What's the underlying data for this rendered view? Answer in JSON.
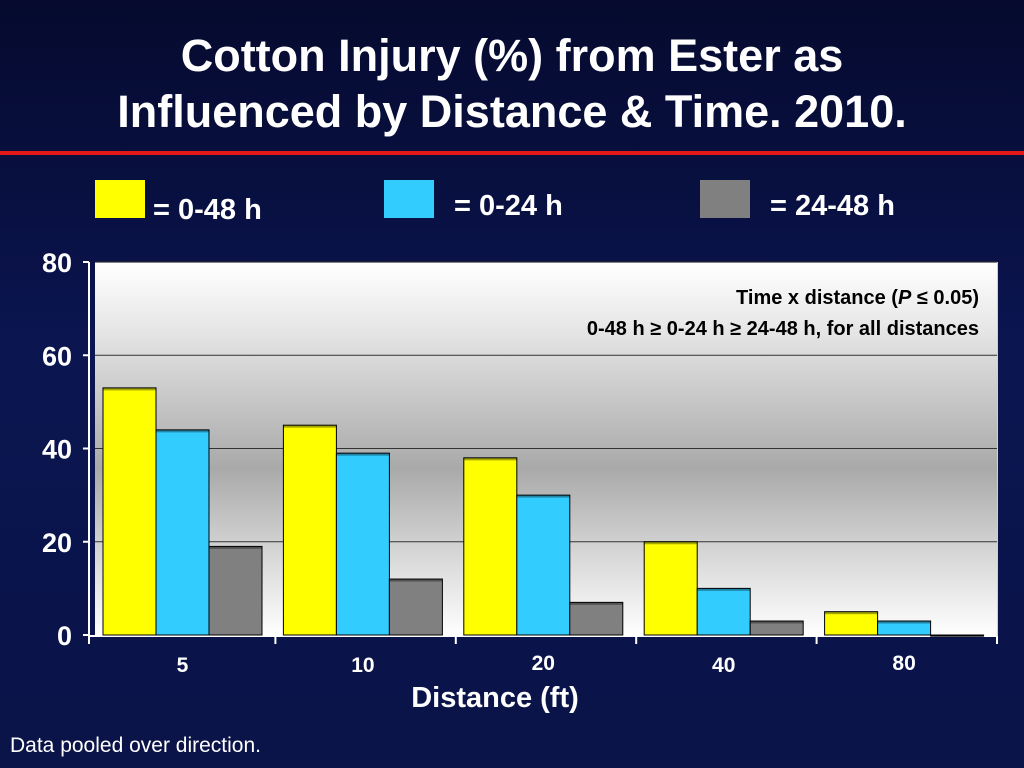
{
  "title_lines": [
    "Cotton Injury (%) from Ester as",
    "Influenced by Distance & Time.  2010."
  ],
  "legend": [
    {
      "label": "= 0-48 h",
      "color": "#ffff00"
    },
    {
      "label": "= 0-24 h",
      "color": "#33ccff"
    },
    {
      "label": "= 24-48 h",
      "color": "#808080"
    }
  ],
  "annotation": {
    "line1_pre": "Time x distance (",
    "line1_italic": "P",
    "line1_post": " ≤ 0.05)",
    "line2": "0-48 h ≥ 0-24 h ≥ 24-48 h, for all distances"
  },
  "footnote": "Data pooled over direction.",
  "chart_data": {
    "type": "bar",
    "title": "Cotton Injury (%) from Ester as Influenced by Distance & Time.  2010.",
    "xlabel": "Distance (ft)",
    "ylabel": "",
    "categories": [
      "5",
      "10",
      "20",
      "40",
      "80"
    ],
    "series": [
      {
        "name": "0-48 h",
        "color": "#ffff00",
        "values": [
          53,
          45,
          38,
          20,
          5
        ]
      },
      {
        "name": "0-24 h",
        "color": "#33ccff",
        "values": [
          44,
          39,
          30,
          10,
          3
        ]
      },
      {
        "name": "24-48 h",
        "color": "#808080",
        "values": [
          19,
          12,
          7,
          3,
          0
        ]
      }
    ],
    "ylim": [
      0,
      80
    ],
    "yticks": [
      0,
      20,
      40,
      60,
      80
    ],
    "grid": true,
    "legend_position": "top"
  }
}
